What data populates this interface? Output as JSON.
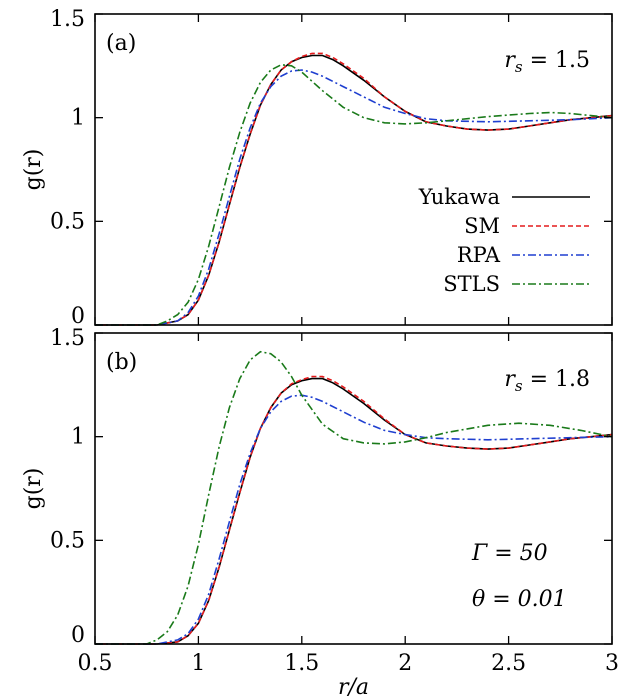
{
  "chart_data": [
    {
      "panel": "(a)",
      "type": "line",
      "annotation": "r_s = 1.5",
      "annotation_parts": {
        "var": "r",
        "sub": "s",
        "rest": " = 1.5"
      },
      "xlabel": "r/a",
      "ylabel": "g(r)",
      "xlim": [
        0.5,
        3
      ],
      "ylim": [
        0,
        1.5
      ],
      "xticks": [
        0.5,
        1,
        1.5,
        2,
        2.5,
        3
      ],
      "xtick_labels": [
        "0.5",
        "1",
        "1.5",
        "2",
        "2.5",
        "3"
      ],
      "yticks": [
        0,
        0.5,
        1,
        1.5
      ],
      "ytick_labels": [
        "0",
        "0.5",
        "1",
        "1.5"
      ],
      "grid": false,
      "legend_position": "lower-right",
      "series": [
        {
          "name": "Yukawa",
          "color": "#000000",
          "dash": "solid",
          "x": [
            0.5,
            0.8,
            0.9,
            0.95,
            1.0,
            1.05,
            1.1,
            1.15,
            1.2,
            1.25,
            1.3,
            1.35,
            1.4,
            1.45,
            1.5,
            1.55,
            1.6,
            1.65,
            1.7,
            1.8,
            1.9,
            2.0,
            2.1,
            2.2,
            2.3,
            2.4,
            2.5,
            2.6,
            2.7,
            2.8,
            2.9,
            3.0
          ],
          "y": [
            0,
            0,
            0.02,
            0.05,
            0.12,
            0.24,
            0.4,
            0.58,
            0.76,
            0.92,
            1.06,
            1.16,
            1.23,
            1.27,
            1.29,
            1.3,
            1.3,
            1.28,
            1.25,
            1.18,
            1.1,
            1.03,
            0.98,
            0.96,
            0.945,
            0.94,
            0.945,
            0.96,
            0.975,
            0.99,
            1.0,
            1.01
          ]
        },
        {
          "name": "SM",
          "color": "#e41a1c",
          "dash": "dashed",
          "x": [
            0.5,
            0.8,
            0.9,
            0.95,
            1.0,
            1.05,
            1.1,
            1.15,
            1.2,
            1.25,
            1.3,
            1.35,
            1.4,
            1.45,
            1.5,
            1.55,
            1.6,
            1.65,
            1.7,
            1.8,
            1.9,
            2.0,
            2.1,
            2.2,
            2.3,
            2.4,
            2.5,
            2.6,
            2.7,
            2.8,
            2.9,
            3.0
          ],
          "y": [
            0,
            0,
            0.02,
            0.05,
            0.12,
            0.24,
            0.4,
            0.58,
            0.76,
            0.92,
            1.06,
            1.16,
            1.23,
            1.27,
            1.295,
            1.31,
            1.31,
            1.29,
            1.26,
            1.19,
            1.1,
            1.03,
            0.98,
            0.96,
            0.945,
            0.94,
            0.945,
            0.96,
            0.975,
            0.99,
            1.0,
            1.01
          ]
        },
        {
          "name": "RPA",
          "color": "#1f3fd0",
          "dash": "dashdot",
          "x": [
            0.5,
            0.8,
            0.9,
            0.95,
            1.0,
            1.05,
            1.1,
            1.15,
            1.2,
            1.25,
            1.3,
            1.35,
            1.4,
            1.45,
            1.5,
            1.55,
            1.6,
            1.7,
            1.8,
            1.9,
            2.0,
            2.1,
            2.2,
            2.4,
            2.6,
            2.8,
            3.0
          ],
          "y": [
            0,
            0,
            0.02,
            0.06,
            0.14,
            0.27,
            0.44,
            0.62,
            0.8,
            0.95,
            1.07,
            1.15,
            1.2,
            1.225,
            1.23,
            1.22,
            1.2,
            1.15,
            1.1,
            1.05,
            1.02,
            0.995,
            0.985,
            0.98,
            0.985,
            0.99,
            1.0
          ]
        },
        {
          "name": "STLS",
          "color": "#1a7a1a",
          "dash": "dashdot",
          "x": [
            0.5,
            0.8,
            0.85,
            0.9,
            0.95,
            1.0,
            1.05,
            1.1,
            1.15,
            1.2,
            1.25,
            1.3,
            1.35,
            1.4,
            1.45,
            1.5,
            1.6,
            1.7,
            1.8,
            1.9,
            2.0,
            2.1,
            2.2,
            2.4,
            2.6,
            2.7,
            2.8,
            3.0
          ],
          "y": [
            0,
            0,
            0.02,
            0.05,
            0.11,
            0.22,
            0.38,
            0.57,
            0.76,
            0.93,
            1.07,
            1.17,
            1.23,
            1.255,
            1.25,
            1.22,
            1.13,
            1.05,
            1.0,
            0.975,
            0.97,
            0.975,
            0.985,
            1.005,
            1.02,
            1.025,
            1.02,
            1.0
          ]
        }
      ]
    },
    {
      "panel": "(b)",
      "type": "line",
      "annotation": "r_s = 1.8",
      "annotation_parts": {
        "var": "r",
        "sub": "s",
        "rest": " = 1.8"
      },
      "annotation2": "Γ = 50",
      "annotation3": "θ = 0.01",
      "xlabel": "r/a",
      "ylabel": "g(r)",
      "xlim": [
        0.5,
        3
      ],
      "ylim": [
        0,
        1.5
      ],
      "xticks": [
        0.5,
        1,
        1.5,
        2,
        2.5,
        3
      ],
      "xtick_labels": [
        "0.5",
        "1",
        "1.5",
        "2",
        "2.5",
        "3"
      ],
      "yticks": [
        0,
        0.5,
        1,
        1.5
      ],
      "ytick_labels": [
        "0",
        "0.5",
        "1",
        "1.5"
      ],
      "grid": false,
      "series": [
        {
          "name": "Yukawa",
          "color": "#000000",
          "dash": "solid",
          "x": [
            0.5,
            0.8,
            0.9,
            0.95,
            1.0,
            1.05,
            1.1,
            1.15,
            1.2,
            1.25,
            1.3,
            1.35,
            1.4,
            1.45,
            1.5,
            1.55,
            1.6,
            1.65,
            1.7,
            1.8,
            1.9,
            2.0,
            2.1,
            2.2,
            2.3,
            2.4,
            2.5,
            2.6,
            2.7,
            2.8,
            2.9,
            3.0
          ],
          "y": [
            0,
            0,
            0.01,
            0.04,
            0.1,
            0.21,
            0.37,
            0.55,
            0.73,
            0.9,
            1.04,
            1.14,
            1.21,
            1.25,
            1.27,
            1.28,
            1.28,
            1.26,
            1.23,
            1.16,
            1.08,
            1.01,
            0.97,
            0.955,
            0.945,
            0.94,
            0.945,
            0.96,
            0.975,
            0.99,
            1.0,
            1.01
          ]
        },
        {
          "name": "SM",
          "color": "#e41a1c",
          "dash": "dashed",
          "x": [
            0.5,
            0.8,
            0.9,
            0.95,
            1.0,
            1.05,
            1.1,
            1.15,
            1.2,
            1.25,
            1.3,
            1.35,
            1.4,
            1.45,
            1.5,
            1.55,
            1.6,
            1.65,
            1.7,
            1.8,
            1.9,
            2.0,
            2.1,
            2.2,
            2.3,
            2.4,
            2.5,
            2.6,
            2.7,
            2.8,
            2.9,
            3.0
          ],
          "y": [
            0,
            0,
            0.01,
            0.04,
            0.1,
            0.21,
            0.37,
            0.55,
            0.73,
            0.9,
            1.04,
            1.14,
            1.21,
            1.255,
            1.275,
            1.29,
            1.29,
            1.27,
            1.24,
            1.17,
            1.085,
            1.01,
            0.97,
            0.955,
            0.945,
            0.94,
            0.945,
            0.96,
            0.975,
            0.99,
            1.0,
            1.01
          ]
        },
        {
          "name": "RPA",
          "color": "#1f3fd0",
          "dash": "dashdot",
          "x": [
            0.5,
            0.8,
            0.9,
            0.95,
            1.0,
            1.05,
            1.1,
            1.15,
            1.2,
            1.25,
            1.3,
            1.35,
            1.4,
            1.45,
            1.5,
            1.55,
            1.6,
            1.7,
            1.8,
            1.9,
            2.0,
            2.1,
            2.2,
            2.4,
            2.6,
            2.8,
            3.0
          ],
          "y": [
            0,
            0,
            0.02,
            0.05,
            0.12,
            0.24,
            0.41,
            0.59,
            0.77,
            0.92,
            1.04,
            1.12,
            1.17,
            1.195,
            1.2,
            1.19,
            1.17,
            1.12,
            1.07,
            1.03,
            1.01,
            0.995,
            0.99,
            0.985,
            0.99,
            0.995,
            1.0
          ]
        },
        {
          "name": "STLS",
          "color": "#1a7a1a",
          "dash": "dashdot",
          "x": [
            0.5,
            0.75,
            0.8,
            0.85,
            0.9,
            0.95,
            1.0,
            1.05,
            1.1,
            1.15,
            1.2,
            1.25,
            1.3,
            1.35,
            1.4,
            1.45,
            1.5,
            1.6,
            1.7,
            1.8,
            1.9,
            2.0,
            2.1,
            2.2,
            2.4,
            2.55,
            2.7,
            2.85,
            3.0
          ],
          "y": [
            0,
            0,
            0.02,
            0.06,
            0.14,
            0.28,
            0.48,
            0.72,
            0.95,
            1.14,
            1.28,
            1.37,
            1.41,
            1.4,
            1.36,
            1.29,
            1.2,
            1.06,
            0.99,
            0.97,
            0.965,
            0.975,
            0.995,
            1.02,
            1.055,
            1.065,
            1.055,
            1.03,
            1.0
          ]
        }
      ]
    }
  ]
}
